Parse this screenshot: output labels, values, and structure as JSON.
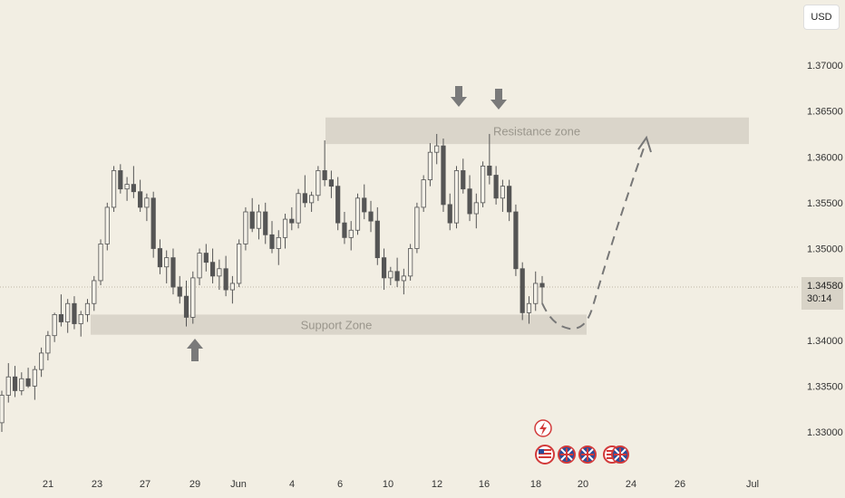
{
  "currency_label": "USD",
  "price_tag": {
    "price": "1.34580",
    "countdown": "30:14"
  },
  "chart_data": {
    "type": "candlestick",
    "title": "",
    "y_ticks": [
      "1.37000",
      "1.36500",
      "1.36000",
      "1.35500",
      "1.35000",
      "1.34000",
      "1.33500",
      "1.33000"
    ],
    "x_ticks": [
      "21",
      "23",
      "27",
      "29",
      "Jun",
      "4",
      "6",
      "10",
      "12",
      "16",
      "18",
      "20",
      "24",
      "26",
      "Jul"
    ],
    "zones": [
      {
        "label": "Resistance zone",
        "from": 1.3614,
        "to": 1.3643
      },
      {
        "label": "Support Zone",
        "from": 1.3406,
        "to": 1.3428
      }
    ],
    "current_price": 1.3458,
    "candles": [
      [
        1.331,
        1.3345,
        1.33,
        1.334
      ],
      [
        1.334,
        1.3375,
        1.3332,
        1.336
      ],
      [
        1.336,
        1.3372,
        1.3338,
        1.3345
      ],
      [
        1.3345,
        1.3365,
        1.334,
        1.3358
      ],
      [
        1.3358,
        1.337,
        1.3348,
        1.335
      ],
      [
        1.335,
        1.3372,
        1.3335,
        1.3368
      ],
      [
        1.3368,
        1.3392,
        1.336,
        1.3386
      ],
      [
        1.3386,
        1.341,
        1.3378,
        1.3405
      ],
      [
        1.3405,
        1.343,
        1.3398,
        1.3428
      ],
      [
        1.3428,
        1.345,
        1.3415,
        1.342
      ],
      [
        1.342,
        1.3445,
        1.3408,
        1.344
      ],
      [
        1.344,
        1.3448,
        1.3412,
        1.3418
      ],
      [
        1.3418,
        1.3432,
        1.3404,
        1.3428
      ],
      [
        1.3428,
        1.3445,
        1.342,
        1.344
      ],
      [
        1.344,
        1.347,
        1.3432,
        1.3465
      ],
      [
        1.3465,
        1.351,
        1.346,
        1.3505
      ],
      [
        1.3505,
        1.355,
        1.3498,
        1.3545
      ],
      [
        1.3545,
        1.359,
        1.354,
        1.3585
      ],
      [
        1.3585,
        1.3592,
        1.356,
        1.3565
      ],
      [
        1.3565,
        1.3578,
        1.3552,
        1.357
      ],
      [
        1.357,
        1.359,
        1.3555,
        1.3562
      ],
      [
        1.3562,
        1.3575,
        1.354,
        1.3545
      ],
      [
        1.3545,
        1.356,
        1.353,
        1.3555
      ],
      [
        1.3555,
        1.3562,
        1.349,
        1.35
      ],
      [
        1.35,
        1.351,
        1.3472,
        1.348
      ],
      [
        1.348,
        1.3498,
        1.3462,
        1.349
      ],
      [
        1.349,
        1.35,
        1.345,
        1.3458
      ],
      [
        1.3458,
        1.347,
        1.344,
        1.3448
      ],
      [
        1.3448,
        1.3465,
        1.3415,
        1.3425
      ],
      [
        1.3425,
        1.3475,
        1.3418,
        1.3468
      ],
      [
        1.3468,
        1.35,
        1.346,
        1.3495
      ],
      [
        1.3495,
        1.3505,
        1.3475,
        1.3485
      ],
      [
        1.3485,
        1.35,
        1.3462,
        1.347
      ],
      [
        1.347,
        1.3488,
        1.3455,
        1.3478
      ],
      [
        1.3478,
        1.3492,
        1.3448,
        1.3455
      ],
      [
        1.3455,
        1.347,
        1.344,
        1.3462
      ],
      [
        1.3462,
        1.351,
        1.3458,
        1.3505
      ],
      [
        1.3505,
        1.3545,
        1.3498,
        1.354
      ],
      [
        1.354,
        1.3555,
        1.3518,
        1.3522
      ],
      [
        1.3522,
        1.3548,
        1.351,
        1.354
      ],
      [
        1.354,
        1.355,
        1.3505,
        1.3515
      ],
      [
        1.3515,
        1.353,
        1.3495,
        1.35
      ],
      [
        1.35,
        1.352,
        1.3482,
        1.3512
      ],
      [
        1.3512,
        1.3538,
        1.35,
        1.3532
      ],
      [
        1.3532,
        1.3545,
        1.352,
        1.3528
      ],
      [
        1.3528,
        1.3565,
        1.3522,
        1.356
      ],
      [
        1.356,
        1.358,
        1.3545,
        1.355
      ],
      [
        1.355,
        1.3562,
        1.354,
        1.3558
      ],
      [
        1.3558,
        1.359,
        1.3552,
        1.3585
      ],
      [
        1.3585,
        1.3618,
        1.3568,
        1.3575
      ],
      [
        1.3575,
        1.3585,
        1.3555,
        1.3568
      ],
      [
        1.3568,
        1.3578,
        1.352,
        1.3528
      ],
      [
        1.3528,
        1.354,
        1.3505,
        1.3512
      ],
      [
        1.3512,
        1.353,
        1.3498,
        1.352
      ],
      [
        1.352,
        1.356,
        1.3515,
        1.3555
      ],
      [
        1.3555,
        1.357,
        1.3532,
        1.354
      ],
      [
        1.354,
        1.3552,
        1.3518,
        1.353
      ],
      [
        1.353,
        1.3545,
        1.3482,
        1.349
      ],
      [
        1.349,
        1.35,
        1.3455,
        1.3468
      ],
      [
        1.3468,
        1.348,
        1.346,
        1.3475
      ],
      [
        1.3475,
        1.349,
        1.3458,
        1.3465
      ],
      [
        1.3465,
        1.3478,
        1.345,
        1.347
      ],
      [
        1.347,
        1.3505,
        1.3465,
        1.35
      ],
      [
        1.35,
        1.355,
        1.3495,
        1.3545
      ],
      [
        1.3545,
        1.358,
        1.354,
        1.3575
      ],
      [
        1.3575,
        1.3615,
        1.3568,
        1.3605
      ],
      [
        1.3605,
        1.3625,
        1.3592,
        1.3612
      ],
      [
        1.3612,
        1.362,
        1.354,
        1.3548
      ],
      [
        1.3548,
        1.356,
        1.352,
        1.3528
      ],
      [
        1.3528,
        1.359,
        1.3522,
        1.3585
      ],
      [
        1.3585,
        1.3598,
        1.356,
        1.3565
      ],
      [
        1.3565,
        1.358,
        1.353,
        1.3538
      ],
      [
        1.3538,
        1.356,
        1.3522,
        1.355
      ],
      [
        1.355,
        1.3595,
        1.3545,
        1.359
      ],
      [
        1.359,
        1.3625,
        1.357,
        1.358
      ],
      [
        1.358,
        1.359,
        1.3548,
        1.3555
      ],
      [
        1.3555,
        1.3575,
        1.354,
        1.3568
      ],
      [
        1.3568,
        1.3575,
        1.353,
        1.354
      ],
      [
        1.354,
        1.3548,
        1.347,
        1.3478
      ],
      [
        1.3478,
        1.3485,
        1.3422,
        1.343
      ],
      [
        1.343,
        1.3448,
        1.3418,
        1.344
      ],
      [
        1.344,
        1.3475,
        1.3432,
        1.3462
      ],
      [
        1.3462,
        1.347,
        1.344,
        1.3458
      ]
    ]
  }
}
